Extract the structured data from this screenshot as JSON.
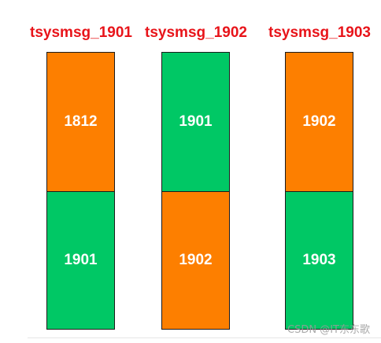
{
  "colors": {
    "title": "#e8141a",
    "orange": "#fd7f00",
    "green": "#00c865",
    "watermark": "#9a9a9a"
  },
  "columns": [
    {
      "title": "tsysmsg_1901",
      "top_value": "1812",
      "top_color": "orange",
      "bottom_value": "1901",
      "bottom_color": "green"
    },
    {
      "title": "tsysmsg_1902",
      "top_value": "1901",
      "top_color": "green",
      "bottom_value": "1902",
      "bottom_color": "orange"
    },
    {
      "title": "tsysmsg_1903",
      "top_value": "1902",
      "top_color": "orange",
      "bottom_value": "1903",
      "bottom_color": "green"
    }
  ],
  "watermark": "CSDN @IT东东歌"
}
